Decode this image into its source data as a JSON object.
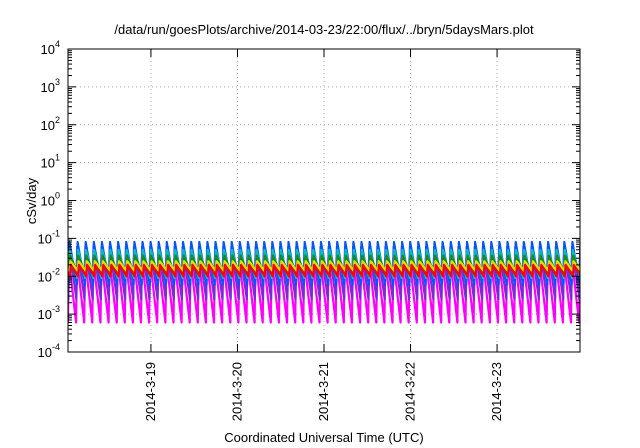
{
  "chart_data": {
    "type": "line",
    "title": "/data/run/goesPlots/archive/2014-03-23/22:00/flux/../bryn/5daysMars.plot",
    "xlabel": "Coordinated Universal Time (UTC)",
    "ylabel": "cSv/day",
    "yscale": "log",
    "ylim": [
      0.0001,
      10000
    ],
    "yticks": [
      {
        "base": "10",
        "exp": "-4"
      },
      {
        "base": "10",
        "exp": "-3"
      },
      {
        "base": "10",
        "exp": "-2"
      },
      {
        "base": "10",
        "exp": "-1"
      },
      {
        "base": "10",
        "exp": "0"
      },
      {
        "base": "10",
        "exp": "1"
      },
      {
        "base": "10",
        "exp": "2"
      },
      {
        "base": "10",
        "exp": "3"
      },
      {
        "base": "10",
        "exp": "4"
      }
    ],
    "xlim": [
      "2014-03-18 01:00",
      "2014-03-23 23:00"
    ],
    "xticks": [
      {
        "label": "2014-3-19",
        "t": "2014-03-19 00:00"
      },
      {
        "label": "2014-3-20",
        "t": "2014-03-20 00:00"
      },
      {
        "label": "2014-3-21",
        "t": "2014-03-21 00:00"
      },
      {
        "label": "2014-3-22",
        "t": "2014-03-22 00:00"
      },
      {
        "label": "2014-3-23",
        "t": "2014-03-23 00:00"
      }
    ],
    "grid": true,
    "grid_style": "dotted",
    "legend": "none",
    "oscillation_period_hours": 2.25,
    "series": [
      {
        "color": "#ff00ff",
        "peak": 0.03,
        "trough": 0.0006
      },
      {
        "color": "#7b2bd6",
        "peak": 0.06,
        "trough": 0.0025
      },
      {
        "color": "#0055ff",
        "peak": 0.08,
        "trough": 0.006
      },
      {
        "color": "#00bfbf",
        "peak": 0.05,
        "trough": 0.009
      },
      {
        "color": "#1a8a1a",
        "peak": 0.035,
        "trough": 0.012
      },
      {
        "color": "#e0e000",
        "peak": 0.025,
        "trough": 0.014
      },
      {
        "color": "#ff0000",
        "peak": 0.02,
        "trough": 0.01
      }
    ]
  }
}
